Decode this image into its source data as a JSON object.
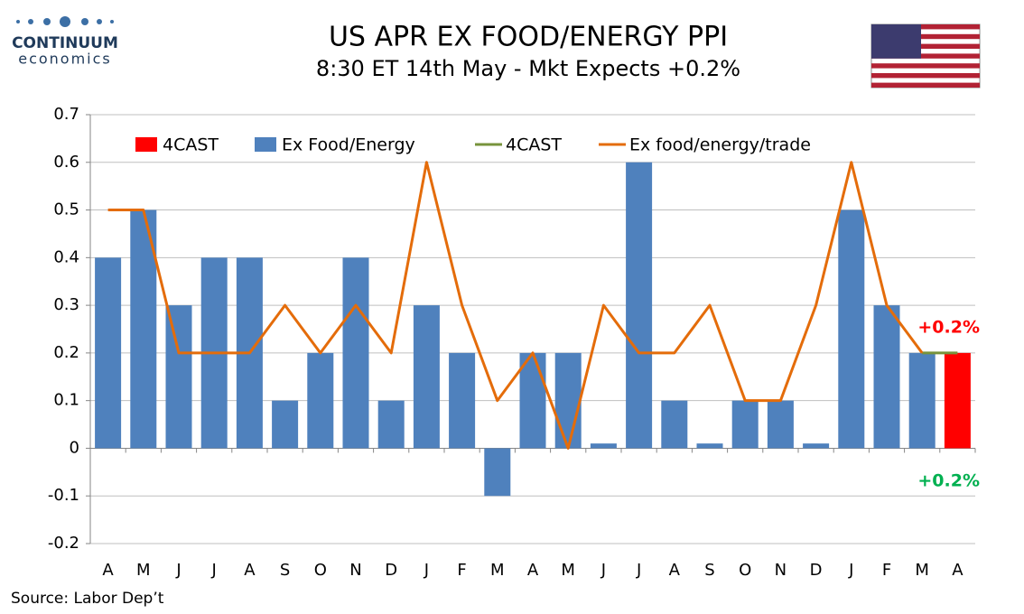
{
  "chart_data": {
    "type": "bar",
    "logo": {
      "name": "CONTINUUM",
      "tagline": "economics"
    },
    "title": "US APR EX FOOD/ENERGY PPI",
    "subtitle": "8:30 ET 14th May - Mkt Expects +0.2%",
    "source": "Source: Labor Dep’t",
    "categories": [
      "A",
      "M",
      "J",
      "J",
      "A",
      "S",
      "O",
      "N",
      "D",
      "J",
      "F",
      "M",
      "A",
      "M",
      "J",
      "J",
      "A",
      "S",
      "O",
      "N",
      "D",
      "J",
      "F",
      "M",
      "A"
    ],
    "series": [
      {
        "name": "4CAST",
        "type": "bar",
        "color": "#ff0000",
        "values": [
          null,
          null,
          null,
          null,
          null,
          null,
          null,
          null,
          null,
          null,
          null,
          null,
          null,
          null,
          null,
          null,
          null,
          null,
          null,
          null,
          null,
          null,
          null,
          null,
          0.2
        ]
      },
      {
        "name": "Ex Food/Energy",
        "type": "bar",
        "color": "#4f81bd",
        "values": [
          0.4,
          0.5,
          0.3,
          0.4,
          0.4,
          0.1,
          0.2,
          0.4,
          0.1,
          0.3,
          0.2,
          -0.1,
          0.2,
          0.2,
          0.01,
          0.6,
          0.1,
          0.01,
          0.1,
          0.1,
          0.01,
          0.5,
          0.3,
          0.2,
          null
        ]
      },
      {
        "name": "4CAST",
        "type": "line",
        "color": "#77933c",
        "values": [
          null,
          null,
          null,
          null,
          null,
          null,
          null,
          null,
          null,
          null,
          null,
          null,
          null,
          null,
          null,
          null,
          null,
          null,
          null,
          null,
          null,
          null,
          null,
          0.2,
          0.2
        ]
      },
      {
        "name": "Ex food/energy/trade",
        "type": "line",
        "color": "#e46c0a",
        "values": [
          0.5,
          0.5,
          0.2,
          0.2,
          0.2,
          0.3,
          0.2,
          0.3,
          0.2,
          0.6,
          0.3,
          0.1,
          0.2,
          0,
          0.3,
          0.2,
          0.2,
          0.3,
          0.1,
          0.1,
          0.3,
          0.6,
          0.3,
          0.2,
          null
        ]
      }
    ],
    "annotations": [
      {
        "text": "+0.2%",
        "color": "#ff0000"
      },
      {
        "text": "+0.2%",
        "color": "#00b050"
      }
    ],
    "ylim": [
      -0.2,
      0.7
    ],
    "yticks": [
      -0.2,
      -0.1,
      0,
      0.1,
      0.2,
      0.3,
      0.4,
      0.5,
      0.6,
      0.7
    ],
    "grid": true,
    "legend": "top"
  }
}
